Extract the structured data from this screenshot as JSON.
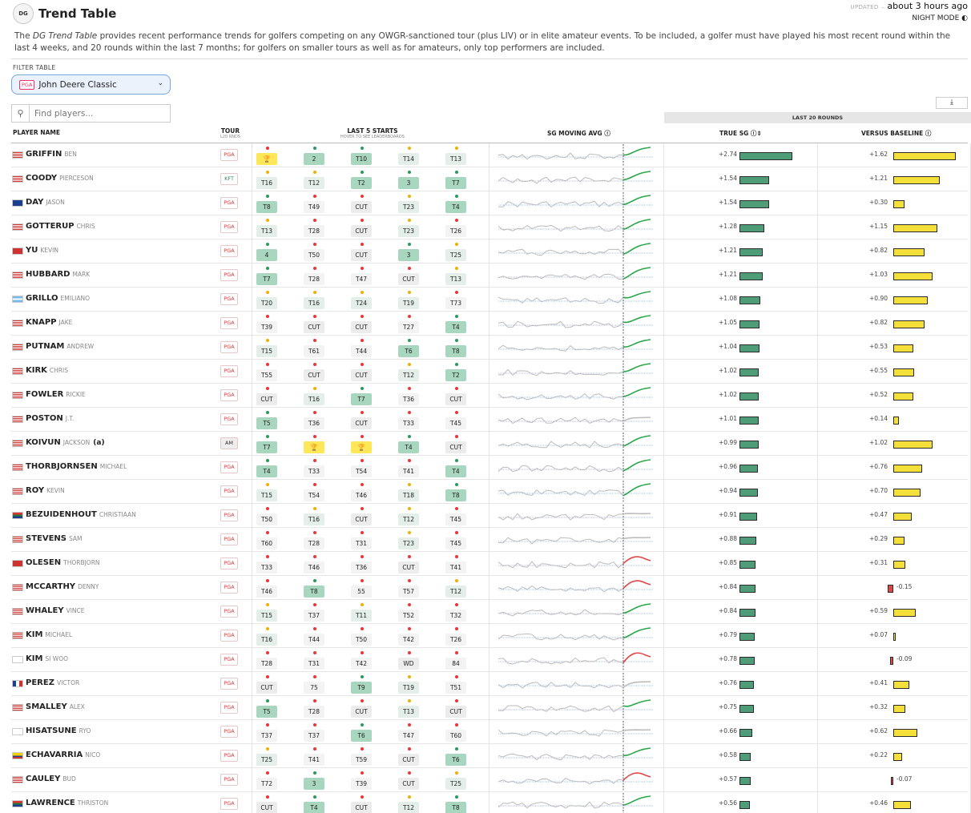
{
  "header": {
    "logo": "DG",
    "title": "Trend Table",
    "updated_label": "UPDATED",
    "updated_value": "about 3 hours ago",
    "night_mode": "NIGHT MODE",
    "night_mode_icon": "half-moon-icon"
  },
  "description": {
    "pre": "The ",
    "em": "DG Trend Table",
    "post": " provides recent performance trends for golfers competing on any OWGR-sanctioned tour (plus LIV) or in elite amateur events. To be included, a golfer must have played his most recent round within the last 4 weeks, and 20 rounds within the last 7 months; for golfers on smaller tours as well as for amateurs, only top performers are included."
  },
  "filter": {
    "label": "FILTER TABLE",
    "tour_badge": "PGA",
    "selected": "John Deere Classic"
  },
  "search": {
    "placeholder": "Find players..."
  },
  "download_icon": "download-icon",
  "section_header": "LAST 20 ROUNDS",
  "columns": {
    "player": "PLAYER NAME",
    "tour": "TOUR",
    "tour_sub": "L20 RNDS",
    "last5": "LAST 5 STARTS",
    "last5_sub": "HOVER TO SEE LEADERBOARDS",
    "sg": "SG MOVING AVG",
    "true_sg": "TRUE SG",
    "vs_base": "VERSUS BASELINE"
  },
  "colors": {
    "green_bar": "#4f9d78",
    "yellow_bar": "#f5df3a",
    "red_bar": "#e04848",
    "line_up": "#2aa64a",
    "line_down": "#e04848",
    "cell_top": "#a9d6bf",
    "cell_gray": "#ececec",
    "cell_win": "#ffe75a"
  },
  "players": [
    {
      "last": "GRIFFIN",
      "first": "BEN",
      "am": "",
      "flag": "us",
      "tour": "PGA",
      "starts": [
        "WIN",
        "2",
        "T10",
        "T14",
        "T13"
      ],
      "trend": "up",
      "true_sg": "+2.74",
      "sg": 2.74,
      "vb_label": "+1.62",
      "vb": 1.62
    },
    {
      "last": "COODY",
      "first": "PIERCESON",
      "am": "",
      "flag": "us",
      "tour": "KFT",
      "starts": [
        "T16",
        "T12",
        "T2",
        "3",
        "T7"
      ],
      "trend": "up",
      "true_sg": "+1.54",
      "sg": 1.54,
      "vb_label": "+1.21",
      "vb": 1.21
    },
    {
      "last": "DAY",
      "first": "JASON",
      "am": "",
      "flag": "au",
      "tour": "PGA",
      "starts": [
        "T8",
        "T49",
        "CUT",
        "T23",
        "T4"
      ],
      "trend": "up",
      "true_sg": "+1.54",
      "sg": 1.54,
      "vb_label": "+0.30",
      "vb": 0.3
    },
    {
      "last": "GOTTERUP",
      "first": "CHRIS",
      "am": "",
      "flag": "us",
      "tour": "PGA",
      "starts": [
        "T13",
        "T28",
        "CUT",
        "T23",
        "T26"
      ],
      "trend": "up",
      "true_sg": "+1.28",
      "sg": 1.28,
      "vb_label": "+1.15",
      "vb": 1.15
    },
    {
      "last": "YU",
      "first": "KEVIN",
      "am": "",
      "flag": "tw",
      "tour": "PGA",
      "starts": [
        "4",
        "T50",
        "CUT",
        "3",
        "T25"
      ],
      "trend": "up",
      "true_sg": "+1.21",
      "sg": 1.21,
      "vb_label": "+0.82",
      "vb": 0.82
    },
    {
      "last": "HUBBARD",
      "first": "MARK",
      "am": "",
      "flag": "us",
      "tour": "PGA",
      "starts": [
        "T7",
        "T28",
        "T47",
        "CUT",
        "T13"
      ],
      "trend": "up",
      "true_sg": "+1.21",
      "sg": 1.21,
      "vb_label": "+1.03",
      "vb": 1.03
    },
    {
      "last": "GRILLO",
      "first": "EMILIANO",
      "am": "",
      "flag": "ar",
      "tour": "PGA",
      "starts": [
        "T20",
        "T16",
        "T24",
        "T19",
        "T73"
      ],
      "trend": "up",
      "true_sg": "+1.08",
      "sg": 1.08,
      "vb_label": "+0.90",
      "vb": 0.9
    },
    {
      "last": "KNAPP",
      "first": "JAKE",
      "am": "",
      "flag": "us",
      "tour": "PGA",
      "starts": [
        "T39",
        "CUT",
        "CUT",
        "T27",
        "T4"
      ],
      "trend": "up",
      "true_sg": "+1.05",
      "sg": 1.05,
      "vb_label": "+0.82",
      "vb": 0.82
    },
    {
      "last": "PUTNAM",
      "first": "ANDREW",
      "am": "",
      "flag": "us",
      "tour": "PGA",
      "starts": [
        "T15",
        "T61",
        "T44",
        "T6",
        "T8"
      ],
      "trend": "up",
      "true_sg": "+1.04",
      "sg": 1.04,
      "vb_label": "+0.53",
      "vb": 0.53
    },
    {
      "last": "KIRK",
      "first": "CHRIS",
      "am": "",
      "flag": "us",
      "tour": "PGA",
      "starts": [
        "T55",
        "CUT",
        "CUT",
        "T12",
        "T2"
      ],
      "trend": "up",
      "true_sg": "+1.02",
      "sg": 1.02,
      "vb_label": "+0.55",
      "vb": 0.55
    },
    {
      "last": "FOWLER",
      "first": "RICKIE",
      "am": "",
      "flag": "us",
      "tour": "PGA",
      "starts": [
        "CUT",
        "T16",
        "T7",
        "T36",
        "CUT"
      ],
      "trend": "up",
      "true_sg": "+1.02",
      "sg": 1.02,
      "vb_label": "+0.52",
      "vb": 0.52
    },
    {
      "last": "POSTON",
      "first": "J.T.",
      "am": "",
      "flag": "us",
      "tour": "PGA",
      "starts": [
        "T5",
        "T36",
        "CUT",
        "T33",
        "T45"
      ],
      "trend": "flat",
      "true_sg": "+1.01",
      "sg": 1.01,
      "vb_label": "+0.14",
      "vb": 0.14
    },
    {
      "last": "KOIVUN",
      "first": "JACKSON",
      "am": "(a)",
      "flag": "us",
      "tour": "AM",
      "starts": [
        "T7",
        "WIN",
        "WIN",
        "T4",
        "CUT"
      ],
      "trend": "up",
      "true_sg": "+0.99",
      "sg": 0.99,
      "vb_label": "+1.02",
      "vb": 1.02
    },
    {
      "last": "THORBJORNSEN",
      "first": "MICHAEL",
      "am": "",
      "flag": "us",
      "tour": "PGA",
      "starts": [
        "T4",
        "T33",
        "T54",
        "T41",
        "T4"
      ],
      "trend": "up",
      "true_sg": "+0.96",
      "sg": 0.96,
      "vb_label": "+0.76",
      "vb": 0.76
    },
    {
      "last": "ROY",
      "first": "KEVIN",
      "am": "",
      "flag": "us",
      "tour": "PGA",
      "starts": [
        "T15",
        "T54",
        "T46",
        "T18",
        "T8"
      ],
      "trend": "up",
      "true_sg": "+0.94",
      "sg": 0.94,
      "vb_label": "+0.70",
      "vb": 0.7
    },
    {
      "last": "BEZUIDENHOUT",
      "first": "CHRISTIAAN",
      "am": "",
      "flag": "za",
      "tour": "PGA",
      "starts": [
        "T50",
        "T16",
        "CUT",
        "T12",
        "T45"
      ],
      "trend": "flat",
      "true_sg": "+0.91",
      "sg": 0.91,
      "vb_label": "+0.47",
      "vb": 0.47
    },
    {
      "last": "STEVENS",
      "first": "SAM",
      "am": "",
      "flag": "us",
      "tour": "PGA",
      "starts": [
        "T60",
        "T28",
        "T31",
        "T23",
        "T45"
      ],
      "trend": "flat",
      "true_sg": "+0.88",
      "sg": 0.88,
      "vb_label": "+0.29",
      "vb": 0.29
    },
    {
      "last": "OLESEN",
      "first": "THORBJORN",
      "am": "",
      "flag": "dk",
      "tour": "PGA",
      "starts": [
        "T33",
        "T46",
        "T36",
        "CUT",
        "T41"
      ],
      "trend": "down",
      "true_sg": "+0.85",
      "sg": 0.85,
      "vb_label": "+0.31",
      "vb": 0.31
    },
    {
      "last": "MCCARTHY",
      "first": "DENNY",
      "am": "",
      "flag": "us",
      "tour": "PGA",
      "starts": [
        "T46",
        "T8",
        "55",
        "T57",
        "T12"
      ],
      "trend": "down",
      "true_sg": "+0.84",
      "sg": 0.84,
      "vb_label": "-0.15",
      "vb": -0.15
    },
    {
      "last": "WHALEY",
      "first": "VINCE",
      "am": "",
      "flag": "us",
      "tour": "PGA",
      "starts": [
        "T15",
        "T37",
        "T11",
        "T52",
        "T32"
      ],
      "trend": "up",
      "true_sg": "+0.84",
      "sg": 0.84,
      "vb_label": "+0.59",
      "vb": 0.59
    },
    {
      "last": "KIM",
      "first": "MICHAEL",
      "am": "",
      "flag": "us",
      "tour": "PGA",
      "starts": [
        "T16",
        "T44",
        "T50",
        "T42",
        "T26"
      ],
      "trend": "up",
      "true_sg": "+0.79",
      "sg": 0.79,
      "vb_label": "+0.07",
      "vb": 0.07
    },
    {
      "last": "KIM",
      "first": "SI WOO",
      "am": "",
      "flag": "kr",
      "tour": "PGA",
      "starts": [
        "T28",
        "T31",
        "T42",
        "WD",
        "84"
      ],
      "trend": "down",
      "true_sg": "+0.78",
      "sg": 0.78,
      "vb_label": "-0.09",
      "vb": -0.09
    },
    {
      "last": "PEREZ",
      "first": "VICTOR",
      "am": "",
      "flag": "fr",
      "tour": "PGA",
      "starts": [
        "CUT",
        "75",
        "T9",
        "T19",
        "T51"
      ],
      "trend": "flat",
      "true_sg": "+0.76",
      "sg": 0.76,
      "vb_label": "+0.41",
      "vb": 0.41
    },
    {
      "last": "SMALLEY",
      "first": "ALEX",
      "am": "",
      "flag": "us",
      "tour": "PGA",
      "starts": [
        "T5",
        "T28",
        "CUT",
        "T13",
        "CUT"
      ],
      "trend": "up",
      "true_sg": "+0.75",
      "sg": 0.75,
      "vb_label": "+0.32",
      "vb": 0.32
    },
    {
      "last": "HISATSUNE",
      "first": "RYO",
      "am": "",
      "flag": "jp",
      "tour": "PGA",
      "starts": [
        "T37",
        "T37",
        "T6",
        "T47",
        "T60"
      ],
      "trend": "flat",
      "true_sg": "+0.66",
      "sg": 0.66,
      "vb_label": "+0.62",
      "vb": 0.62
    },
    {
      "last": "ECHAVARRIA",
      "first": "NICO",
      "am": "",
      "flag": "co",
      "tour": "PGA",
      "starts": [
        "T25",
        "T41",
        "T59",
        "CUT",
        "T6"
      ],
      "trend": "up",
      "true_sg": "+0.58",
      "sg": 0.58,
      "vb_label": "+0.22",
      "vb": 0.22
    },
    {
      "last": "CAULEY",
      "first": "BUD",
      "am": "",
      "flag": "us",
      "tour": "PGA",
      "starts": [
        "T72",
        "3",
        "T39",
        "CUT",
        "T25"
      ],
      "trend": "down",
      "true_sg": "+0.57",
      "sg": 0.57,
      "vb_label": "-0.07",
      "vb": -0.07
    },
    {
      "last": "LAWRENCE",
      "first": "THRISTON",
      "am": "",
      "flag": "za",
      "tour": "PGA",
      "starts": [
        "CUT",
        "T4",
        "CUT",
        "T12",
        "T8"
      ],
      "trend": "up",
      "true_sg": "+0.56",
      "sg": 0.56,
      "vb_label": "+0.46",
      "vb": 0.46
    }
  ]
}
